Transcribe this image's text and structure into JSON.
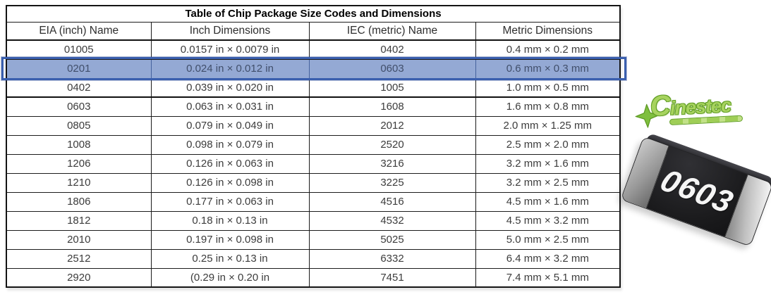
{
  "table": {
    "title": "Table of Chip Package Size Codes and Dimensions",
    "columns": [
      "EIA (inch) Name",
      "Inch Dimensions",
      "IEC (metric) Name",
      "Metric Dimensions"
    ],
    "rows": [
      {
        "eia": "01005",
        "inch": "0.0157 in × 0.0079 in",
        "iec": "0402",
        "metric": "0.4 mm × 0.2 mm",
        "highlighted": false,
        "divider_below": false
      },
      {
        "eia": "0201",
        "inch": "0.024 in × 0.012 in",
        "iec": "0603",
        "metric": "0.6 mm × 0.3 mm",
        "highlighted": true,
        "divider_below": false
      },
      {
        "eia": "0402",
        "inch": "0.039 in × 0.020 in",
        "iec": "1005",
        "metric": "1.0 mm × 0.5 mm",
        "highlighted": false,
        "divider_below": true
      },
      {
        "eia": "0603",
        "inch": "0.063 in × 0.031 in",
        "iec": "1608",
        "metric": "1.6 mm × 0.8 mm",
        "highlighted": false,
        "divider_below": false
      },
      {
        "eia": "0805",
        "inch": "0.079 in × 0.049 in",
        "iec": "2012",
        "metric": "2.0 mm × 1.25 mm",
        "highlighted": false,
        "divider_below": false
      },
      {
        "eia": "1008",
        "inch": "0.098 in × 0.079 in",
        "iec": "2520",
        "metric": "2.5 mm × 2.0 mm",
        "highlighted": false,
        "divider_below": false
      },
      {
        "eia": "1206",
        "inch": "0.126 in × 0.063 in",
        "iec": "3216",
        "metric": "3.2 mm × 1.6 mm",
        "highlighted": false,
        "divider_below": false
      },
      {
        "eia": "1210",
        "inch": "0.126 in × 0.098 in",
        "iec": "3225",
        "metric": "3.2 mm × 2.5 mm",
        "highlighted": false,
        "divider_below": false
      },
      {
        "eia": "1806",
        "inch": "0.177 in × 0.063 in",
        "iec": "4516",
        "metric": "4.5 mm × 1.6 mm",
        "highlighted": false,
        "divider_below": false
      },
      {
        "eia": "1812",
        "inch": "0.18 in × 0.13 in",
        "iec": "4532",
        "metric": "4.5 mm × 3.2 mm",
        "highlighted": false,
        "divider_below": false
      },
      {
        "eia": "2010",
        "inch": "0.197 in × 0.098 in",
        "iec": "5025",
        "metric": "5.0 mm × 2.5 mm",
        "highlighted": false,
        "divider_below": false
      },
      {
        "eia": "2512",
        "inch": "0.25 in × 0.13 in",
        "iec": "6332",
        "metric": "6.4 mm × 3.2 mm",
        "highlighted": false,
        "divider_below": false
      },
      {
        "eia": "2920",
        "inch": "(0.29 in × 0.20 in",
        "iec": "7451",
        "metric": "7.4 mm × 5.1 mm",
        "highlighted": false,
        "divider_below": false
      }
    ]
  },
  "logo": {
    "text": "Cinestec"
  },
  "chip": {
    "label": "0603"
  },
  "colors": {
    "highlight_fill": "#94a9d4",
    "highlight_border": "#3a5fae",
    "logo_green": "#a7d35f"
  }
}
